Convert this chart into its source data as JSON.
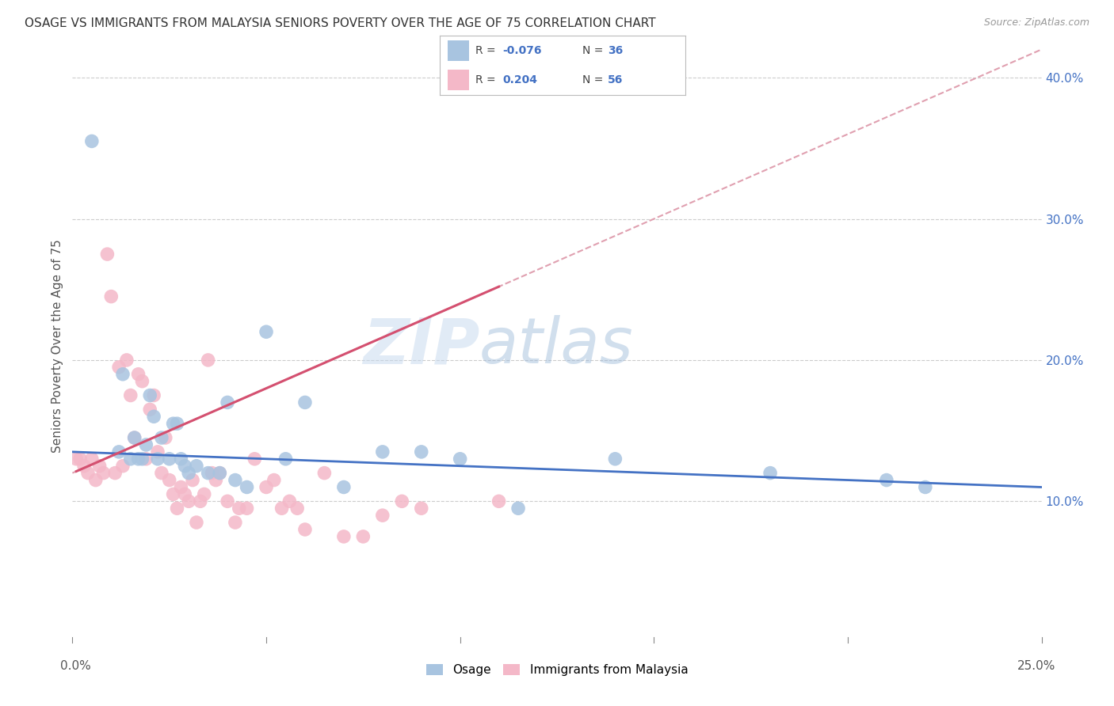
{
  "title": "OSAGE VS IMMIGRANTS FROM MALAYSIA SENIORS POVERTY OVER THE AGE OF 75 CORRELATION CHART",
  "source": "Source: ZipAtlas.com",
  "ylabel": "Seniors Poverty Over the Age of 75",
  "xlim": [
    0.0,
    0.25
  ],
  "ylim": [
    0.0,
    0.42
  ],
  "yticks": [
    0.1,
    0.2,
    0.3,
    0.4
  ],
  "ytick_labels": [
    "10.0%",
    "20.0%",
    "30.0%",
    "40.0%"
  ],
  "xtick_positions": [
    0.0,
    0.05,
    0.1,
    0.15,
    0.2,
    0.25
  ],
  "grid_color": "#cccccc",
  "background_color": "#ffffff",
  "osage_color": "#a8c4e0",
  "malaysia_color": "#f4b8c8",
  "osage_line_color": "#4472c4",
  "malaysia_line_color": "#d45070",
  "malaysia_dash_color": "#e0a0b0",
  "watermark_zip": "ZIP",
  "watermark_atlas": "atlas",
  "osage_x": [
    0.005,
    0.012,
    0.013,
    0.015,
    0.016,
    0.017,
    0.018,
    0.019,
    0.02,
    0.021,
    0.022,
    0.023,
    0.025,
    0.026,
    0.027,
    0.028,
    0.029,
    0.03,
    0.032,
    0.035,
    0.038,
    0.04,
    0.042,
    0.045,
    0.05,
    0.055,
    0.06,
    0.07,
    0.08,
    0.09,
    0.1,
    0.115,
    0.14,
    0.18,
    0.21,
    0.22
  ],
  "osage_y": [
    0.355,
    0.135,
    0.19,
    0.13,
    0.145,
    0.13,
    0.13,
    0.14,
    0.175,
    0.16,
    0.13,
    0.145,
    0.13,
    0.155,
    0.155,
    0.13,
    0.125,
    0.12,
    0.125,
    0.12,
    0.12,
    0.17,
    0.115,
    0.11,
    0.22,
    0.13,
    0.17,
    0.11,
    0.135,
    0.135,
    0.13,
    0.095,
    0.13,
    0.12,
    0.115,
    0.11
  ],
  "malaysia_x": [
    0.001,
    0.002,
    0.003,
    0.004,
    0.005,
    0.006,
    0.007,
    0.008,
    0.009,
    0.01,
    0.011,
    0.012,
    0.013,
    0.014,
    0.015,
    0.016,
    0.017,
    0.018,
    0.019,
    0.02,
    0.021,
    0.022,
    0.023,
    0.024,
    0.025,
    0.026,
    0.027,
    0.028,
    0.029,
    0.03,
    0.031,
    0.032,
    0.033,
    0.034,
    0.035,
    0.036,
    0.037,
    0.038,
    0.04,
    0.042,
    0.043,
    0.045,
    0.047,
    0.05,
    0.052,
    0.054,
    0.056,
    0.058,
    0.06,
    0.065,
    0.07,
    0.075,
    0.08,
    0.085,
    0.09,
    0.11
  ],
  "malaysia_y": [
    0.13,
    0.13,
    0.125,
    0.12,
    0.13,
    0.115,
    0.125,
    0.12,
    0.275,
    0.245,
    0.12,
    0.195,
    0.125,
    0.2,
    0.175,
    0.145,
    0.19,
    0.185,
    0.13,
    0.165,
    0.175,
    0.135,
    0.12,
    0.145,
    0.115,
    0.105,
    0.095,
    0.11,
    0.105,
    0.1,
    0.115,
    0.085,
    0.1,
    0.105,
    0.2,
    0.12,
    0.115,
    0.12,
    0.1,
    0.085,
    0.095,
    0.095,
    0.13,
    0.11,
    0.115,
    0.095,
    0.1,
    0.095,
    0.08,
    0.12,
    0.075,
    0.075,
    0.09,
    0.1,
    0.095,
    0.1
  ],
  "osage_trend": [
    -0.076,
    0.135,
    0.11
  ],
  "malaysia_trend": [
    0.204,
    0.12,
    0.42
  ]
}
